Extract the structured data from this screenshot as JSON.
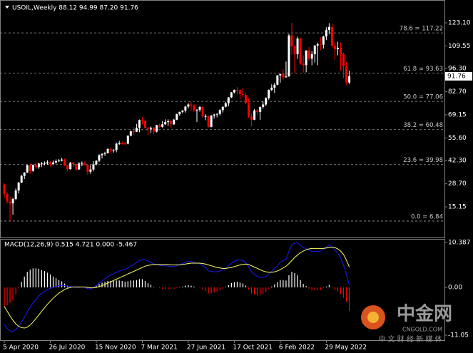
{
  "chart_data": {
    "type": "candlestick",
    "legend_text": "USOIL,Weekly  88.12 94.99 87.20 91.76",
    "last_price_label": "91.76",
    "categories": [
      "5 Apr 2020",
      null,
      null,
      null,
      null,
      null,
      null,
      null,
      null,
      null,
      null,
      null,
      null,
      null,
      null,
      null,
      "26 Jul 2020",
      null,
      null,
      null,
      null,
      null,
      null,
      null,
      null,
      null,
      null,
      null,
      null,
      null,
      null,
      null,
      "15 Nov 2020",
      null,
      null,
      null,
      null,
      null,
      null,
      null,
      null,
      null,
      null,
      null,
      null,
      null,
      null,
      null,
      "7 Mar 2021",
      null,
      null,
      null,
      null,
      null,
      null,
      null,
      null,
      null,
      null,
      null,
      null,
      null,
      null,
      null,
      "27 Jun 2021",
      null,
      null,
      null,
      null,
      null,
      null,
      null,
      null,
      null,
      null,
      null,
      null,
      null,
      null,
      null,
      "17 Oct 2021",
      null,
      null,
      null,
      null,
      null,
      null,
      null,
      null,
      null,
      null,
      null,
      null,
      null,
      null,
      null,
      "6 Feb 2022",
      null,
      null,
      null,
      null,
      null,
      null,
      null,
      null,
      null,
      null,
      null,
      null,
      null,
      null,
      null,
      "29 May 2022",
      null,
      null,
      null,
      null,
      null,
      null,
      null,
      null
    ],
    "open": [
      28.3,
      22.8,
      18.3,
      17.2,
      19.8,
      24.7,
      29.4,
      33.3,
      35.3,
      39.6,
      36.3,
      39.8,
      38.5,
      40.6,
      40.6,
      40.6,
      41.3,
      40.3,
      41.2,
      42.0,
      42.3,
      42.9,
      39.5,
      37.3,
      41.1,
      40.3,
      37.1,
      40.6,
      40.9,
      39.9,
      35.8,
      37.1,
      40.1,
      42.2,
      45.5,
      46.3,
      46.6,
      49.1,
      48.2,
      48.5,
      52.2,
      52.4,
      52.3,
      52.2,
      56.9,
      59.5,
      59.2,
      61.5,
      66.1,
      65.6,
      61.4,
      60.9,
      61.5,
      59.3,
      63.1,
      62.1,
      63.6,
      64.9,
      65.4,
      63.6,
      66.3,
      69.6,
      70.9,
      71.6,
      74.0,
      75.2,
      74.6,
      71.8,
      72.1,
      73.9,
      68.3,
      68.4,
      62.1,
      68.7,
      69.3,
      69.7,
      71.9,
      73.9,
      75.9,
      79.4,
      82.3,
      83.8,
      83.6,
      81.3,
      80.8,
      76.1,
      68.2,
      66.3,
      71.7,
      70.9,
      73.8,
      75.2,
      78.9,
      83.8,
      85.1,
      86.8,
      92.3,
      93.1,
      91.1,
      91.6,
      115.7,
      109.3,
      104.7,
      113.9,
      99.3,
      98.3,
      106.9,
      102.1,
      104.7,
      109.8,
      110.5,
      110.3,
      115.1,
      118.9,
      120.7,
      109.6,
      107.6,
      108.4,
      104.8,
      97.6,
      88.12
    ],
    "high": [
      29.0,
      24.0,
      21.0,
      20.5,
      26.0,
      29.8,
      34.0,
      35.5,
      39.8,
      40.5,
      40.0,
      41.5,
      41.0,
      41.5,
      41.8,
      42.5,
      42.0,
      42.3,
      43.0,
      43.2,
      43.8,
      43.5,
      40.0,
      41.5,
      41.5,
      40.5,
      41.5,
      41.8,
      41.8,
      40.0,
      39.5,
      42.0,
      42.5,
      46.0,
      46.5,
      47.5,
      49.5,
      49.8,
      49.0,
      52.8,
      53.9,
      53.5,
      53.3,
      57.0,
      59.8,
      62.0,
      63.8,
      66.4,
      67.9,
      66.4,
      62.0,
      62.3,
      62.0,
      63.3,
      64.0,
      65.5,
      66.5,
      66.5,
      66.5,
      66.8,
      69.8,
      71.0,
      72.0,
      74.2,
      76.0,
      76.9,
      75.5,
      72.5,
      74.0,
      74.0,
      69.5,
      68.5,
      69.0,
      69.8,
      70.0,
      72.5,
      74.0,
      76.7,
      79.5,
      82.5,
      84.0,
      85.4,
      84.0,
      84.9,
      81.8,
      78.9,
      69.9,
      72.5,
      72.5,
      74.0,
      77.0,
      79.5,
      84.0,
      87.0,
      87.9,
      92.5,
      93.2,
      95.8,
      100.4,
      116.6,
      123.1,
      110.0,
      115.0,
      114.5,
      104.0,
      107.0,
      109.0,
      106.5,
      110.0,
      111.5,
      114.6,
      115.5,
      120.5,
      122.9,
      122.5,
      111.8,
      112.0,
      111.5,
      105.5,
      100.0,
      94.99
    ],
    "low": [
      20.5,
      17.0,
      6.84,
      10.5,
      19.0,
      23.0,
      29.0,
      31.5,
      35.0,
      34.5,
      35.8,
      37.5,
      37.5,
      38.5,
      39.5,
      40.0,
      38.8,
      39.8,
      40.5,
      41.5,
      41.8,
      39.0,
      36.0,
      37.0,
      38.5,
      36.5,
      37.0,
      39.0,
      39.5,
      34.0,
      34.5,
      36.0,
      39.5,
      41.5,
      43.5,
      45.0,
      46.5,
      46.5,
      47.0,
      47.2,
      51.5,
      51.5,
      51.5,
      51.8,
      56.5,
      57.5,
      59.0,
      58.9,
      63.5,
      61.3,
      57.3,
      58.5,
      57.7,
      58.8,
      61.5,
      61.7,
      63.3,
      62.6,
      61.6,
      63.2,
      66.0,
      68.5,
      70.0,
      70.5,
      72.9,
      71.5,
      70.8,
      65.0,
      71.0,
      67.6,
      66.0,
      61.8,
      61.8,
      67.0,
      67.6,
      68.8,
      70.5,
      73.5,
      74.1,
      79.0,
      81.7,
      81.0,
      78.3,
      79.5,
      75.3,
      67.4,
      62.3,
      66.0,
      69.3,
      66.1,
      72.8,
      74.3,
      78.0,
      83.0,
      82.0,
      86.5,
      88.0,
      89.5,
      91.0,
      91.6,
      104.5,
      93.5,
      102.0,
      98.5,
      93.9,
      94.1,
      101.0,
      98.2,
      99.8,
      98.2,
      107.0,
      108.0,
      113.0,
      116.5,
      108.6,
      101.5,
      104.0,
      95.0,
      90.6,
      86.5,
      87.2
    ],
    "close": [
      22.8,
      18.3,
      17.2,
      19.8,
      24.7,
      29.4,
      33.3,
      35.3,
      39.6,
      36.3,
      39.8,
      38.5,
      40.6,
      40.6,
      40.6,
      41.3,
      40.3,
      41.2,
      42.0,
      42.3,
      42.9,
      39.5,
      37.3,
      41.1,
      40.3,
      37.1,
      40.6,
      40.9,
      39.9,
      35.8,
      37.1,
      40.1,
      42.2,
      45.5,
      46.3,
      46.6,
      49.1,
      48.2,
      48.5,
      52.2,
      52.4,
      52.3,
      52.2,
      56.9,
      59.5,
      59.2,
      61.5,
      66.1,
      65.6,
      61.4,
      60.9,
      61.5,
      59.3,
      63.1,
      62.1,
      63.6,
      64.9,
      65.4,
      63.6,
      66.3,
      69.6,
      70.9,
      71.6,
      74.0,
      75.2,
      74.6,
      71.8,
      72.1,
      73.9,
      68.3,
      68.4,
      62.1,
      68.7,
      69.3,
      69.7,
      71.9,
      73.9,
      75.9,
      79.4,
      82.3,
      83.8,
      83.6,
      81.3,
      80.8,
      76.1,
      68.2,
      66.3,
      71.7,
      70.9,
      73.8,
      75.2,
      78.9,
      83.8,
      85.1,
      86.8,
      92.3,
      93.1,
      91.1,
      91.6,
      115.7,
      109.3,
      104.7,
      113.9,
      99.3,
      98.3,
      106.9,
      102.1,
      104.7,
      109.8,
      110.5,
      110.3,
      115.1,
      118.9,
      120.7,
      109.6,
      107.6,
      108.4,
      104.8,
      97.6,
      88.1,
      91.76
    ],
    "up_color": "#ffffff",
    "down_color": "#ff0000",
    "ylim": [
      -2.8,
      136.5
    ],
    "yticks": [
      {
        "value": 123.1,
        "label": "123.10"
      },
      109.55,
      {
        "value": 96.3,
        "label": "96.30"
      },
      {
        "value": 82.7,
        "label": "82.70"
      },
      69.15,
      {
        "value": 55.6,
        "label": "55.60"
      },
      {
        "value": 42.3,
        "label": "42.30"
      },
      {
        "value": 28.7,
        "label": "28.70"
      },
      15.15
    ],
    "fib_levels": [
      {
        "label": "78.6 = 117.22",
        "value": 117.22
      },
      {
        "label": "61.8 = 93.63",
        "value": 93.63
      },
      {
        "label": "50.0 = 77.06",
        "value": 77.06
      },
      {
        "label": "38.2 = 60.48",
        "value": 60.48
      },
      {
        "label": "23.6 = 39.98",
        "value": 39.98
      },
      {
        "label": "0.0 = 6.84",
        "value": 6.84
      }
    ],
    "indicator": {
      "type": "macd",
      "label": "MACD(12,26,9) 0.515 4.721 0.000 -5.467",
      "ylim": [
        -12.36,
        11.21
      ],
      "yticks": [
        10.387,
        {
          "value": 0,
          "label": "0.00"
        },
        -11.05
      ],
      "positive_color": "#ffffff",
      "negative_color": "#ff0000",
      "histogram": [
        -4.5,
        -4.2,
        -3.6,
        -3.0,
        -1.6,
        -0.2,
        1.3,
        2.5,
        3.6,
        4.1,
        4.4,
        4.4,
        4.3,
        4.0,
        3.8,
        3.4,
        3.0,
        2.5,
        2.1,
        1.7,
        1.4,
        0.9,
        0.4,
        0.2,
        0.0,
        -0.1,
        -0.1,
        0.0,
        -0.1,
        -0.3,
        -0.2,
        0.1,
        0.4,
        0.8,
        1.1,
        1.3,
        1.5,
        1.5,
        1.5,
        1.6,
        1.6,
        1.5,
        1.3,
        1.4,
        1.6,
        1.6,
        1.7,
        1.9,
        1.9,
        1.5,
        1.0,
        0.6,
        0.1,
        0.0,
        -0.2,
        -0.3,
        -0.3,
        -0.4,
        -0.4,
        -0.4,
        -0.2,
        0.1,
        0.2,
        0.4,
        0.5,
        0.4,
        0.2,
        0.0,
        -0.1,
        -0.5,
        -0.8,
        -1.4,
        -1.3,
        -1.2,
        -1.0,
        -0.7,
        -0.3,
        0.1,
        0.5,
        1.0,
        1.2,
        1.3,
        1.1,
        0.9,
        0.4,
        -0.5,
        -1.4,
        -1.7,
        -1.9,
        -1.8,
        -1.5,
        -1.1,
        -0.4,
        0.2,
        0.7,
        1.2,
        1.7,
        1.7,
        1.6,
        2.8,
        3.6,
        3.3,
        2.8,
        1.7,
        0.8,
        0.3,
        -0.3,
        -0.7,
        -0.7,
        -0.7,
        -0.6,
        -0.2,
        0.2,
        0.6,
        0.1,
        -0.6,
        -1.0,
        -1.6,
        -2.4,
        -3.3,
        -5.467
      ],
      "lines": [
        {
          "color": "#1a1aff",
          "values": [
            -8.6,
            -9.5,
            -10.0,
            -10.2,
            -9.8,
            -9.0,
            -8.0,
            -6.9,
            -5.6,
            -4.6,
            -3.6,
            -2.8,
            -2.0,
            -1.4,
            -0.9,
            -0.5,
            -0.2,
            0.0,
            0.2,
            0.4,
            0.5,
            0.4,
            0.2,
            0.2,
            0.1,
            0.0,
            0.0,
            0.1,
            0.0,
            -0.3,
            -0.3,
            0.0,
            0.4,
            1.0,
            1.5,
            2.0,
            2.5,
            2.8,
            3.1,
            3.5,
            3.8,
            4.0,
            4.1,
            4.5,
            5.0,
            5.3,
            5.7,
            6.2,
            6.5,
            6.4,
            6.1,
            5.8,
            5.4,
            5.3,
            5.1,
            5.0,
            5.0,
            4.9,
            4.8,
            4.8,
            5.0,
            5.3,
            5.5,
            5.8,
            6.0,
            6.0,
            5.8,
            5.6,
            5.5,
            5.0,
            4.6,
            3.8,
            3.7,
            3.6,
            3.6,
            3.8,
            4.1,
            4.5,
            5.0,
            5.6,
            6.0,
            6.3,
            6.3,
            6.2,
            5.8,
            4.8,
            3.6,
            3.0,
            2.5,
            2.3,
            2.3,
            2.5,
            3.1,
            3.7,
            4.3,
            5.0,
            5.8,
            6.2,
            6.5,
            8.3,
            9.8,
            10.2,
            10.3,
            9.7,
            9.2,
            9.0,
            8.6,
            8.3,
            8.3,
            8.3,
            8.4,
            8.8,
            9.3,
            9.8,
            9.4,
            8.6,
            7.9,
            6.8,
            5.2,
            3.0,
            0.515
          ]
        },
        {
          "color": "#ffff66",
          "values": [
            -4.4,
            -5.5,
            -6.6,
            -7.6,
            -8.4,
            -9.0,
            -9.3,
            -9.4,
            -9.2,
            -8.7,
            -8.0,
            -7.2,
            -6.4,
            -5.5,
            -4.7,
            -3.9,
            -3.2,
            -2.5,
            -1.9,
            -1.3,
            -0.9,
            -0.5,
            -0.2,
            0.0,
            0.1,
            0.1,
            0.1,
            0.1,
            0.1,
            0.0,
            -0.1,
            -0.1,
            0.0,
            0.2,
            0.4,
            0.7,
            1.0,
            1.3,
            1.6,
            1.9,
            2.2,
            2.5,
            2.8,
            3.1,
            3.4,
            3.7,
            4.0,
            4.3,
            4.6,
            4.9,
            5.1,
            5.2,
            5.3,
            5.3,
            5.3,
            5.3,
            5.3,
            5.3,
            5.2,
            5.2,
            5.2,
            5.2,
            5.3,
            5.4,
            5.5,
            5.6,
            5.6,
            5.6,
            5.6,
            5.5,
            5.4,
            5.2,
            5.0,
            4.8,
            4.6,
            4.5,
            4.4,
            4.4,
            4.5,
            4.6,
            4.8,
            5.0,
            5.2,
            5.3,
            5.4,
            5.3,
            5.0,
            4.7,
            4.4,
            4.1,
            3.8,
            3.6,
            3.5,
            3.5,
            3.6,
            3.8,
            4.1,
            4.5,
            4.9,
            5.5,
            6.2,
            6.9,
            7.5,
            8.0,
            8.4,
            8.7,
            8.9,
            9.0,
            9.0,
            9.0,
            9.0,
            9.0,
            9.1,
            9.2,
            9.3,
            9.2,
            8.9,
            8.4,
            7.6,
            6.3,
            4.721
          ]
        }
      ]
    },
    "watermark": {
      "brand": "中金网",
      "site": "CNGOLD.COM",
      "slogan": "中 文 财 经 新 媒 体"
    }
  }
}
